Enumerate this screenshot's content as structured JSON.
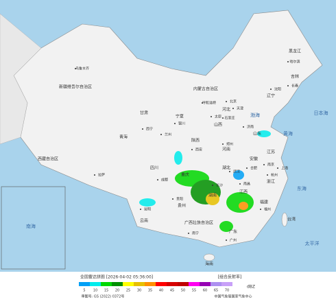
{
  "map": {
    "regions": [
      "新疆维吾尔自治区",
      "西藏自治区",
      "青海",
      "甘肃",
      "内蒙古自治区",
      "黑龙江",
      "吉林",
      "辽宁",
      "河北",
      "山西",
      "山东",
      "河南",
      "陕西",
      "宁夏",
      "四川",
      "重庆",
      "湖北",
      "安徽",
      "江苏",
      "浙江",
      "江西",
      "湖南",
      "贵州",
      "云南",
      "广西壮族自治区",
      "广东",
      "福建",
      "台湾",
      "海南"
    ],
    "cities": [
      "乌鲁木齐",
      "拉萨",
      "西宁",
      "兰州",
      "成都",
      "昆明",
      "贵阳",
      "南宁",
      "广州",
      "长沙",
      "武汉",
      "郑州",
      "西安",
      "太原",
      "石家庄",
      "北京",
      "天津",
      "济南",
      "南京",
      "上海",
      "杭州",
      "福州",
      "南昌",
      "合肥",
      "哈尔滨",
      "长春",
      "沈阳",
      "呼和浩特",
      "银川"
    ],
    "seas": [
      "渤海",
      "黄海",
      "东海",
      "太平洋",
      "日本海",
      "南海"
    ]
  },
  "legend": {
    "title": "全国雷达拼图 [2026-04-02 05:36:00]",
    "product": "[组合反射率]",
    "unit": "dBZ",
    "values": [
      5,
      10,
      15,
      20,
      25,
      30,
      35,
      40,
      45,
      50,
      55,
      60,
      65,
      70
    ],
    "colors": [
      "#01a0f6",
      "#00ecec",
      "#00d800",
      "#019000",
      "#ffff00",
      "#e7c000",
      "#ff9000",
      "#ff0000",
      "#d60000",
      "#c00000",
      "#ff00f0",
      "#9600b4",
      "#ad90f0",
      "#c8a0f8"
    ]
  },
  "footer": {
    "approval": "审图号: GS (2022) 0372号",
    "source": "中国气象局国家气象中心"
  }
}
